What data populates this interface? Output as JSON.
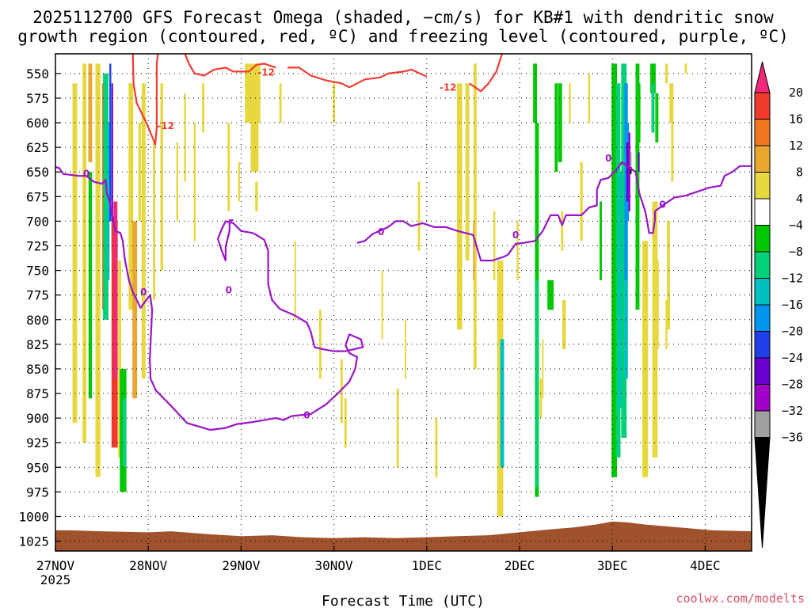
{
  "chart_data": {
    "type": "time-height",
    "title_line1": "2025112700 GFS Forecast Omega (shaded, −cm/s) for KB#1 with dendritic snow",
    "title_line2": "growth region (contoured, red, ºC) and freezing level (contoured, purple, ºC)",
    "xlabel": "Forecast Time (UTC)",
    "x_ticks": [
      {
        "label": "27NOV",
        "sub": "2025",
        "hour": 0
      },
      {
        "label": "28NOV",
        "sub": "",
        "hour": 24
      },
      {
        "label": "29NOV",
        "sub": "",
        "hour": 48
      },
      {
        "label": "30NOV",
        "sub": "",
        "hour": 72
      },
      {
        "label": "1DEC",
        "sub": "",
        "hour": 96
      },
      {
        "label": "2DEC",
        "sub": "",
        "hour": 120
      },
      {
        "label": "3DEC",
        "sub": "",
        "hour": 144
      },
      {
        "label": "4DEC",
        "sub": "",
        "hour": 168
      }
    ],
    "x_range_hours": [
      0,
      180
    ],
    "y_levels": [
      "550",
      "575",
      "600",
      "625",
      "650",
      "675",
      "700",
      "725",
      "750",
      "775",
      "800",
      "825",
      "850",
      "875",
      "900",
      "925",
      "950",
      "975",
      "1000",
      "1025"
    ],
    "y_range_hpa": [
      530,
      1035
    ],
    "grid": true,
    "colorbar": {
      "ticks": [
        "20",
        "16",
        "12",
        "8",
        "4",
        "−4",
        "−8",
        "−12",
        "−16",
        "−20",
        "−24",
        "−28",
        "−32",
        "−36"
      ],
      "bins": [
        {
          "range": "20+",
          "color": "#f0287a"
        },
        {
          "range": "16..20",
          "color": "#f03a2a"
        },
        {
          "range": "12..16",
          "color": "#f07820"
        },
        {
          "range": "8..12",
          "color": "#e8a830"
        },
        {
          "range": "4..8",
          "color": "#e8d840"
        },
        {
          "range": "-4..4",
          "color": "#ffffff"
        },
        {
          "range": "-8..-4",
          "color": "#00c800"
        },
        {
          "range": "-12..-8",
          "color": "#00d078"
        },
        {
          "range": "-16..-12",
          "color": "#00c0c0"
        },
        {
          "range": "-20..-16",
          "color": "#0096f0"
        },
        {
          "range": "-24..-20",
          "color": "#1e40e6"
        },
        {
          "range": "-28..-24",
          "color": "#6a00d0"
        },
        {
          "range": "-32..-28",
          "color": "#a000c8"
        },
        {
          "range": "-36..-32",
          "color": "#a0a0a0"
        },
        {
          "range": "<-36",
          "color": "#000000"
        }
      ]
    },
    "contours": {
      "dendritic_label": "-12",
      "dendritic_color": "#f03c32",
      "freezing_label": "0",
      "freezing_color": "#9a14c8"
    },
    "terrain_color": "#a0522d",
    "credit": "coolwx.com/modelts"
  }
}
